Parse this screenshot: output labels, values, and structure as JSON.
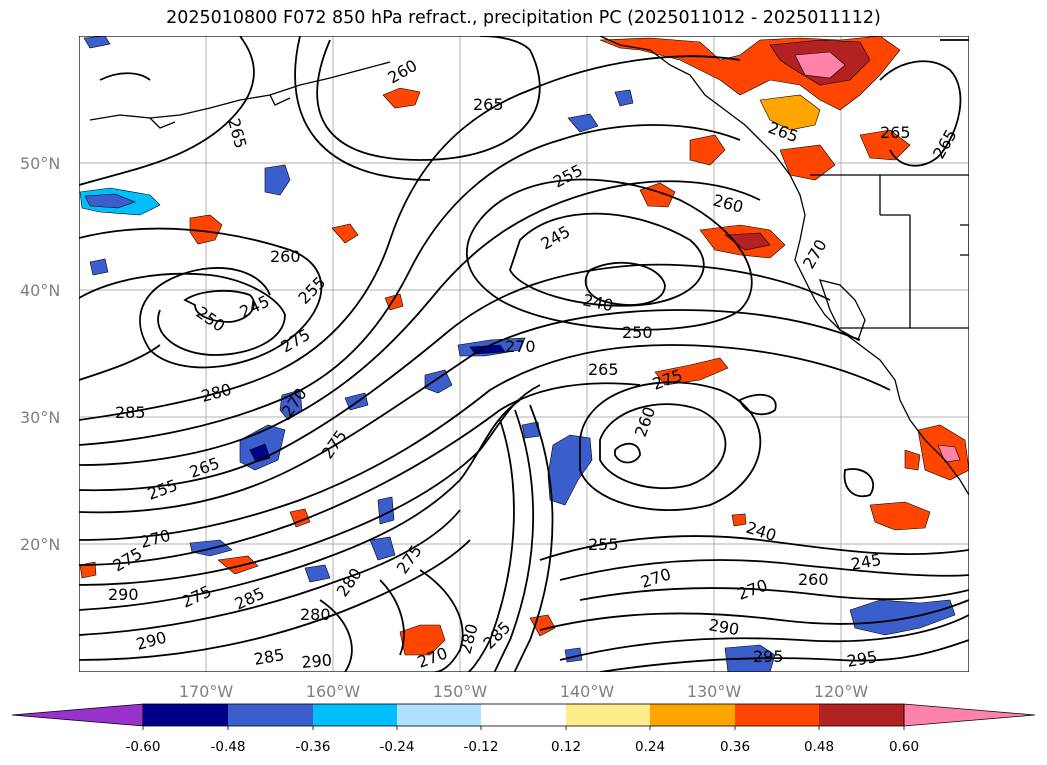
{
  "title": "2025010800 F072 850 hPa refract., precipitation PC (2025011012 - 2025011112)",
  "lat_labels": [
    "50°N",
    "40°N",
    "30°N",
    "20°N"
  ],
  "lon_labels": [
    "170°W",
    "160°W",
    "150°W",
    "140°W",
    "130°W",
    "120°W"
  ],
  "contour_labels": [
    "265",
    "260",
    "265",
    "255",
    "245",
    "240",
    "250",
    "260",
    "245",
    "250",
    "255",
    "275",
    "280",
    "285",
    "270",
    "275",
    "265",
    "255",
    "270",
    "275",
    "270",
    "265",
    "260",
    "275",
    "255",
    "240",
    "245",
    "260",
    "270",
    "270",
    "290",
    "275",
    "285",
    "280",
    "290",
    "285",
    "290",
    "280",
    "275",
    "270",
    "280",
    "285",
    "290",
    "295",
    "295",
    "265",
    "265",
    "265",
    "260",
    "270"
  ],
  "colorbar": {
    "ticks": [
      "-0.60",
      "-0.48",
      "-0.36",
      "-0.24",
      "-0.12",
      "0.12",
      "0.24",
      "0.36",
      "0.48",
      "0.60"
    ],
    "colors": [
      "#9932cc",
      "#00008b",
      "#3a5fcd",
      "#00bfff",
      "#b0e2ff",
      "#ffffff",
      "#ffec8b",
      "#ffa500",
      "#ff4500",
      "#b22222",
      "#ff82ab",
      "#ff82ab"
    ]
  }
}
